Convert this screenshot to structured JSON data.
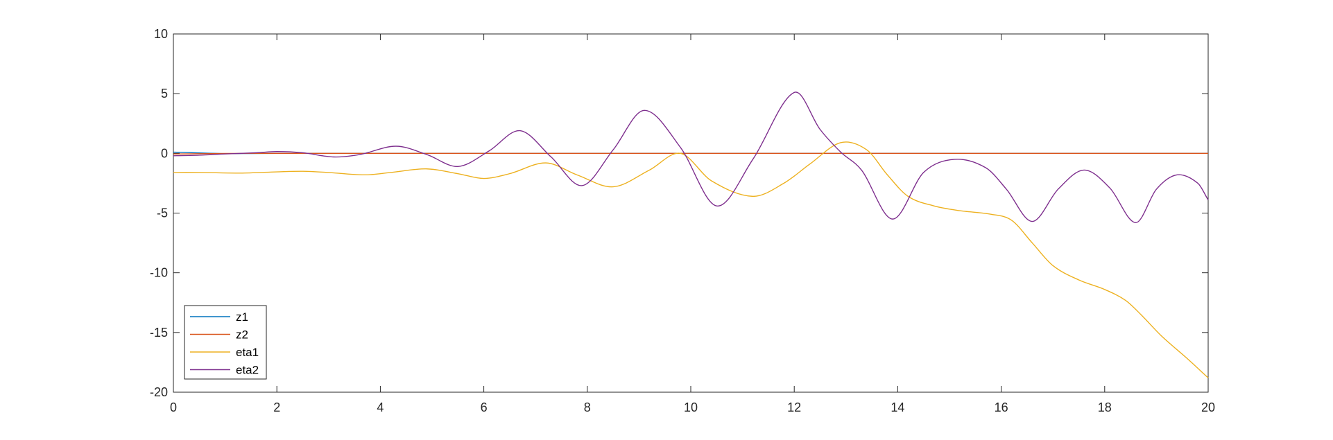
{
  "chart_data": {
    "type": "line",
    "title": "",
    "xlabel": "",
    "ylabel": "",
    "xlim": [
      0,
      20
    ],
    "ylim": [
      -20,
      10
    ],
    "xticks": [
      0,
      2,
      4,
      6,
      8,
      10,
      12,
      14,
      16,
      18,
      20
    ],
    "yticks": [
      10,
      5,
      0,
      -5,
      -10,
      -15,
      -20
    ],
    "grid": false,
    "legend_position": "bottom-left",
    "series": [
      {
        "name": "z1",
        "color": "#0072BD",
        "x": [
          0,
          0.2,
          0.4,
          0.6,
          0.8,
          1.0,
          1.2,
          1.5,
          2.0,
          3.0,
          20
        ],
        "y": [
          0.1,
          0.08,
          0.05,
          0.02,
          0.0,
          -0.02,
          -0.02,
          -0.01,
          0,
          0,
          0
        ]
      },
      {
        "name": "z2",
        "color": "#D95319",
        "x": [
          0,
          0.5,
          1.0,
          1.5,
          2.0,
          3.0,
          20
        ],
        "y": [
          -0.05,
          -0.03,
          -0.01,
          0,
          0,
          0,
          0
        ]
      },
      {
        "name": "eta1",
        "color": "#EDB120",
        "x": [
          0,
          0.5,
          1.3,
          2.0,
          2.5,
          3.0,
          3.7,
          4.2,
          4.9,
          5.5,
          6.0,
          6.5,
          7.2,
          7.8,
          8.5,
          9.2,
          9.8,
          10.4,
          11.2,
          11.8,
          12.3,
          12.9,
          13.4,
          13.8,
          14.2,
          14.7,
          15.2,
          15.8,
          16.2,
          16.6,
          17.0,
          17.5,
          18.0,
          18.4,
          18.7,
          19.1,
          19.6,
          20.0
        ],
        "y": [
          -1.6,
          -1.6,
          -1.65,
          -1.55,
          -1.5,
          -1.6,
          -1.8,
          -1.6,
          -1.3,
          -1.7,
          -2.1,
          -1.7,
          -0.8,
          -1.8,
          -2.8,
          -1.4,
          0.0,
          -2.3,
          -3.6,
          -2.5,
          -0.9,
          0.9,
          0.3,
          -1.8,
          -3.6,
          -4.4,
          -4.8,
          -5.1,
          -5.6,
          -7.5,
          -9.4,
          -10.6,
          -11.4,
          -12.3,
          -13.5,
          -15.3,
          -17.2,
          -18.8
        ]
      },
      {
        "name": "eta2",
        "color": "#7E2F8E",
        "x": [
          0,
          0.5,
          1.0,
          1.6,
          2.0,
          2.5,
          3.1,
          3.6,
          4.3,
          4.9,
          5.5,
          6.1,
          6.7,
          7.3,
          7.9,
          8.5,
          9.1,
          9.8,
          10.5,
          11.2,
          12.0,
          12.5,
          12.9,
          13.3,
          13.9,
          14.5,
          15.1,
          15.7,
          16.1,
          16.6,
          17.1,
          17.6,
          18.1,
          18.6,
          19.0,
          19.4,
          19.8,
          20.0
        ],
        "y": [
          -0.2,
          -0.15,
          -0.05,
          0.05,
          0.15,
          0.05,
          -0.3,
          -0.1,
          0.6,
          -0.1,
          -1.1,
          0.2,
          1.9,
          -0.3,
          -2.7,
          0.3,
          3.6,
          0.5,
          -4.4,
          -0.5,
          5.1,
          2.0,
          0.1,
          -1.4,
          -5.5,
          -1.6,
          -0.5,
          -1.2,
          -3.0,
          -5.7,
          -3.0,
          -1.4,
          -2.9,
          -5.8,
          -3.0,
          -1.8,
          -2.5,
          -3.9
        ]
      }
    ]
  }
}
